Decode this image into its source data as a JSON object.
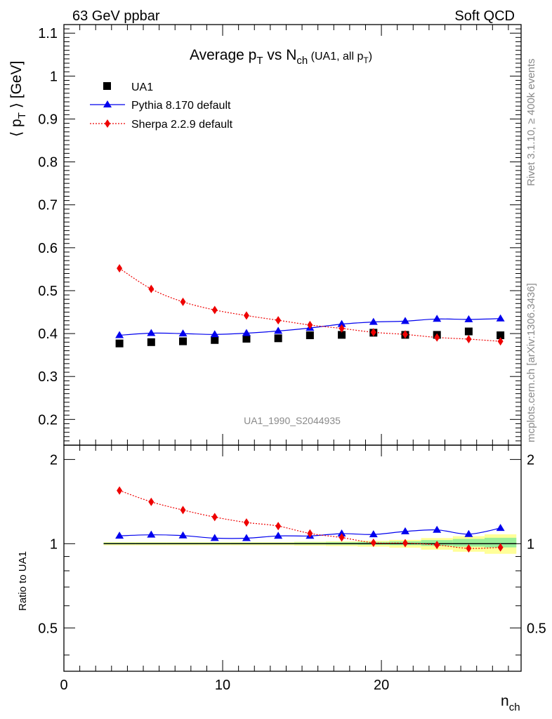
{
  "header": {
    "left": "63 GeV ppbar",
    "right": "Soft QCD"
  },
  "side_labels": {
    "rivet": "Rivet 3.1.10, ≥ 400k events",
    "mcplots": "mcplots.cern.ch [arXiv:1306.3436]"
  },
  "chart_data": {
    "type": "scatter",
    "title_parts": {
      "main": "Average p",
      "sub1": "T",
      "mid": " vs N",
      "sub2": "ch",
      "paren": " (UA1, all p",
      "sub3": "T",
      "close": ")"
    },
    "analysis_id": "UA1_1990_S2044935",
    "xlabel": {
      "main": "n",
      "sub": "ch"
    },
    "ylabel": {
      "main": "⟨ p",
      "sub": "T",
      "rest": " ⟩ [GeV]"
    },
    "ratio_ylabel": "Ratio to UA1",
    "xlim": [
      0,
      28.8
    ],
    "ylim": [
      0.14,
      1.12
    ],
    "ratio_ylim": [
      0.35,
      2.25
    ],
    "x_ticks": [
      "0",
      "10",
      "20"
    ],
    "x_tick_values": [
      0,
      10,
      20
    ],
    "y_ticks": [
      "0.2",
      "0.3",
      "0.4",
      "0.5",
      "0.6",
      "0.7",
      "0.8",
      "0.9",
      "1",
      "1.1"
    ],
    "y_tick_values": [
      0.2,
      0.3,
      0.4,
      0.5,
      0.6,
      0.7,
      0.8,
      0.9,
      1.0,
      1.1
    ],
    "ratio_ticks": [
      "0.5",
      "1",
      "2"
    ],
    "ratio_tick_values": [
      0.5,
      1,
      2
    ],
    "x": [
      3.5,
      5.5,
      7.5,
      9.5,
      11.5,
      13.5,
      15.5,
      17.5,
      19.5,
      21.5,
      23.5,
      25.5,
      27.5
    ],
    "series": [
      {
        "name": "UA1",
        "marker": "square",
        "color": "#000000",
        "values": [
          0.377,
          0.38,
          0.382,
          0.385,
          0.388,
          0.389,
          0.396,
          0.397,
          0.402,
          0.397,
          0.397,
          0.405,
          0.396
        ],
        "ratio_band_err": [
          0.008,
          0.008,
          0.008,
          0.008,
          0.008,
          0.008,
          0.01,
          0.012,
          0.015,
          0.02,
          0.03,
          0.04,
          0.05
        ]
      },
      {
        "name": "Pythia 8.170 default",
        "marker": "triangle",
        "color": "#0000ee",
        "values": [
          0.396,
          0.401,
          0.4,
          0.398,
          0.401,
          0.406,
          0.413,
          0.422,
          0.427,
          0.429,
          0.434,
          0.433,
          0.435
        ],
        "ratio": [
          1.067,
          1.076,
          1.069,
          1.047,
          1.046,
          1.066,
          1.066,
          1.086,
          1.079,
          1.106,
          1.12,
          1.082,
          1.137
        ]
      },
      {
        "name": "Sherpa 2.2.9 default",
        "marker": "diamond",
        "color": "#ee0000",
        "values": [
          0.552,
          0.504,
          0.474,
          0.455,
          0.442,
          0.431,
          0.42,
          0.412,
          0.403,
          0.398,
          0.391,
          0.387,
          0.382
        ],
        "ratio": [
          1.549,
          1.411,
          1.319,
          1.245,
          1.191,
          1.156,
          1.088,
          1.052,
          1.008,
          1.005,
          0.99,
          0.962,
          0.97
        ]
      }
    ],
    "colors": {
      "band_yellow": "#ffff99",
      "band_green": "#99ee99"
    }
  }
}
